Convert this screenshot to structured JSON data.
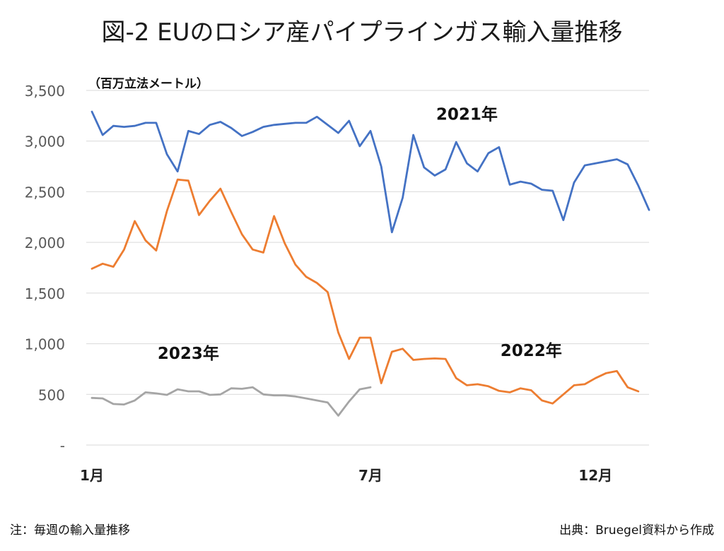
{
  "title": "図-2 EUのロシア産パイプラインガス輸入量推移",
  "footnote": "注：毎週の輸入量推移",
  "source": "出典：Bruegel資料から作成",
  "chart_data": {
    "type": "line",
    "ylabel": "（百万立法メートル）",
    "ylim": [
      0,
      3500
    ],
    "yticks": [
      {
        "value": 3500,
        "label": "3,500"
      },
      {
        "value": 3000,
        "label": "3,000"
      },
      {
        "value": 2500,
        "label": "2,500"
      },
      {
        "value": 2000,
        "label": "2,000"
      },
      {
        "value": 1500,
        "label": "1,500"
      },
      {
        "value": 1000,
        "label": "1,000"
      },
      {
        "value": 500,
        "label": "500"
      },
      {
        "value": 0,
        "label": "-"
      }
    ],
    "xlim": [
      1,
      53
    ],
    "xticks": [
      {
        "value": 1,
        "label": "1月"
      },
      {
        "value": 27,
        "label": "7月"
      },
      {
        "value": 48,
        "label": "12月"
      }
    ],
    "grid": true,
    "series": [
      {
        "name": "2021年",
        "color": "#4472C4",
        "label_at": [
          36,
          3210
        ],
        "values": [
          3290,
          3060,
          3150,
          3140,
          3150,
          3180,
          3180,
          2870,
          2700,
          3100,
          3070,
          3160,
          3190,
          3130,
          3050,
          3090,
          3140,
          3160,
          3170,
          3180,
          3180,
          3240,
          3160,
          3080,
          3200,
          2950,
          3100,
          2750,
          2100,
          2440,
          3060,
          2740,
          2660,
          2720,
          2990,
          2780,
          2700,
          2880,
          2940,
          2570,
          2600,
          2580,
          2520,
          2510,
          2220,
          2590,
          2760,
          2780,
          2800,
          2820,
          2770,
          2560,
          2320
        ]
      },
      {
        "name": "2022年",
        "color": "#ED7D31",
        "label_at": [
          42,
          880
        ],
        "values": [
          1740,
          1790,
          1760,
          1930,
          2210,
          2020,
          1920,
          2310,
          2620,
          2610,
          2270,
          2410,
          2530,
          2300,
          2080,
          1930,
          1900,
          2260,
          1990,
          1780,
          1660,
          1600,
          1510,
          1110,
          850,
          1060,
          1060,
          610,
          920,
          950,
          840,
          850,
          855,
          850,
          660,
          590,
          600,
          580,
          535,
          520,
          560,
          540,
          440,
          410,
          500,
          590,
          600,
          660,
          710,
          730,
          570,
          530
        ]
      },
      {
        "name": "2023年",
        "color": "#A5A5A5",
        "label_at": [
          10,
          850
        ],
        "values": [
          465,
          460,
          405,
          400,
          440,
          520,
          510,
          495,
          550,
          530,
          530,
          495,
          500,
          560,
          555,
          570,
          500,
          490,
          490,
          480,
          460,
          440,
          420,
          290,
          430,
          550,
          570
        ]
      }
    ]
  }
}
